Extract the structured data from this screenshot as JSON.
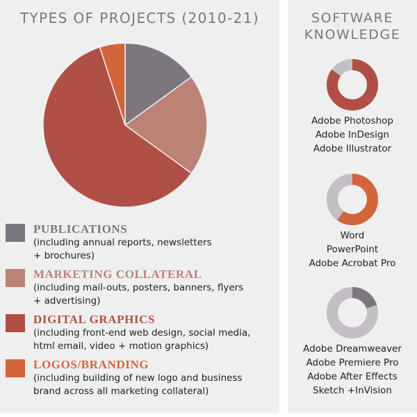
{
  "left_title": "TYPES OF PROJECTS (2010-21)",
  "right_title": [
    "SOFTWARE",
    "KNOWLEDGE"
  ],
  "chart_data": {
    "type": "pie",
    "title": "TYPES OF PROJECTS (2010-21)",
    "categories": [
      "PUBLICATIONS",
      "MARKETING COLLATERAL",
      "DIGITAL GRAPHICS",
      "LOGOS/BRANDING"
    ],
    "values": [
      15,
      20,
      60,
      5
    ],
    "colors": [
      "#7c767f",
      "#bb8275",
      "#b04f46",
      "#d2653b"
    ]
  },
  "legend": [
    {
      "title": "PUBLICATIONS",
      "color": "#7c767f",
      "desc": [
        "(including annual reports, newsletters",
        "+ brochures)"
      ]
    },
    {
      "title": "MARKETING COLLATERAL",
      "color": "#bb8275",
      "desc": [
        "(including mail-outs, posters, banners, flyers",
        "+ advertising)"
      ]
    },
    {
      "title": "DIGITAL GRAPHICS",
      "color": "#b04f46",
      "desc": [
        "(including front-end web design, social media,",
        "html email, video + motion graphics)"
      ]
    },
    {
      "title": "LOGOS/BRANDING",
      "color": "#d2653b",
      "desc": [
        "(including building of new logo and business",
        "brand across all marketing collateral)"
      ]
    }
  ],
  "software": [
    {
      "level": 0.85,
      "color": "#b04f46",
      "track": "#c3bfc5",
      "items": [
        "Adobe Photoshop",
        "Adobe InDesign",
        "Adobe Illustrator"
      ]
    },
    {
      "level": 0.6,
      "color": "#d2653b",
      "track": "#c3bfc5",
      "items": [
        "Word",
        "PowerPoint",
        "Adobe Acrobat Pro"
      ]
    },
    {
      "level": 0.2,
      "color": "#7c767f",
      "track": "#c3bfc5",
      "items": [
        "Adobe Dreamweaver",
        "Adobe Premiere Pro",
        "Adobe After Effects",
        "Sketch +InVision"
      ]
    }
  ]
}
